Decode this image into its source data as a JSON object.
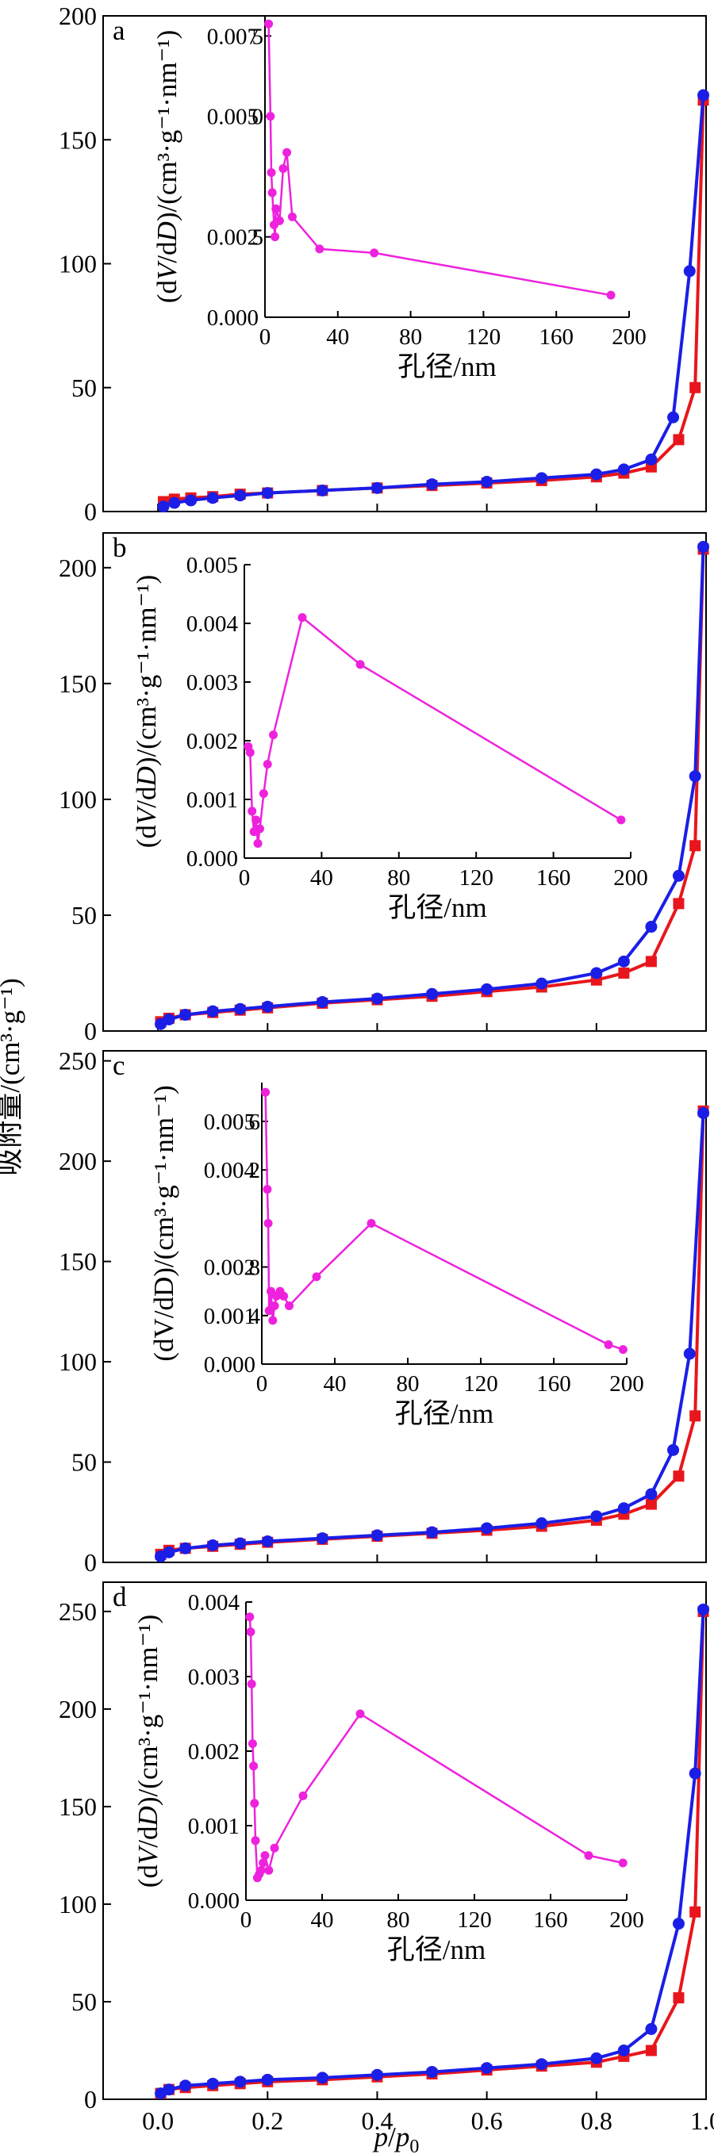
{
  "figure": {
    "ylabel": "吸附量/(cm³·g⁻¹)",
    "xlabel_main": "p",
    "xlabel_sub": "p",
    "xlabel_subscript": "0",
    "xticks": [
      "0.0",
      "0.2",
      "0.4",
      "0.6",
      "0.8",
      "1.0"
    ]
  },
  "colors": {
    "adsorption": "#e8161c",
    "desorption": "#1a1ee6",
    "inset": "#ee22dd"
  },
  "chart_data": [
    {
      "type": "line",
      "panel": "a",
      "xlim": [
        -0.1,
        1.0
      ],
      "ylim": [
        0,
        200
      ],
      "yticks": [
        "0",
        "50",
        "100",
        "150",
        "200"
      ],
      "series": [
        {
          "color": "red",
          "marker": "square",
          "x": [
            0.01,
            0.03,
            0.06,
            0.1,
            0.15,
            0.2,
            0.3,
            0.4,
            0.5,
            0.6,
            0.7,
            0.8,
            0.85,
            0.9,
            0.95,
            0.98,
            0.995
          ],
          "y": [
            4,
            5,
            5.5,
            6,
            7,
            7.5,
            8.5,
            9.5,
            10.5,
            11.5,
            12.5,
            14,
            15.5,
            18,
            29,
            50,
            166
          ]
        },
        {
          "color": "blue",
          "marker": "circle",
          "x": [
            0.01,
            0.03,
            0.06,
            0.1,
            0.15,
            0.2,
            0.3,
            0.4,
            0.5,
            0.6,
            0.7,
            0.8,
            0.85,
            0.9,
            0.94,
            0.97,
            0.995
          ],
          "y": [
            2,
            3.5,
            4.5,
            5.5,
            6.5,
            7.5,
            8.5,
            9.5,
            11,
            12,
            13.5,
            15,
            17,
            21,
            38,
            97,
            168
          ]
        }
      ],
      "inset": {
        "xlabel": "孔径/nm",
        "ylabel": "(dV/dD)/(cm³·g⁻¹·nm⁻¹)",
        "ylabel_italic": [
          "V",
          "D"
        ],
        "xlim": [
          0,
          200
        ],
        "ylim": [
          0,
          0.0075
        ],
        "xticks": [
          "0",
          "40",
          "80",
          "120",
          "160",
          "200"
        ],
        "yticks": [
          "0.000",
          "0.002",
          "0.005",
          "0.007"
        ],
        "ytick_overlays": [
          "",
          "5",
          "0",
          "5"
        ],
        "x": [
          2,
          3,
          3.5,
          4,
          5,
          5.5,
          6,
          8,
          10,
          12,
          15,
          30,
          60,
          190
        ],
        "y": [
          0.0073,
          0.005,
          0.0036,
          0.0031,
          0.0023,
          0.002,
          0.0027,
          0.0024,
          0.0037,
          0.0041,
          0.0025,
          0.0017,
          0.0016,
          0.00055
        ]
      }
    },
    {
      "type": "line",
      "panel": "b",
      "xlim": [
        -0.1,
        1.0
      ],
      "ylim": [
        0,
        215
      ],
      "yticks": [
        "0",
        "50",
        "100",
        "150",
        "200"
      ],
      "series": [
        {
          "color": "red",
          "marker": "square",
          "x": [
            0.005,
            0.02,
            0.05,
            0.1,
            0.15,
            0.2,
            0.3,
            0.4,
            0.5,
            0.6,
            0.7,
            0.8,
            0.85,
            0.9,
            0.95,
            0.98,
            0.995
          ],
          "y": [
            4,
            5.5,
            7,
            8,
            9,
            10,
            12,
            13.5,
            15,
            17,
            19,
            22,
            25,
            30,
            55,
            80,
            208
          ]
        },
        {
          "color": "blue",
          "marker": "circle",
          "x": [
            0.005,
            0.02,
            0.05,
            0.1,
            0.15,
            0.2,
            0.3,
            0.4,
            0.5,
            0.6,
            0.7,
            0.8,
            0.85,
            0.9,
            0.95,
            0.98,
            0.995
          ],
          "y": [
            3,
            5,
            7,
            8.5,
            9.5,
            10.5,
            12.5,
            14,
            16,
            18,
            20.5,
            25,
            30,
            45,
            67,
            110,
            209
          ]
        }
      ],
      "inset": {
        "xlabel": "孔径/nm",
        "ylabel": "(dV/dD)/(cm³·g⁻¹·nm⁻¹)",
        "ylabel_italic": [
          "V",
          "D"
        ],
        "xlim": [
          0,
          200
        ],
        "ylim": [
          0,
          0.005
        ],
        "xticks": [
          "0",
          "40",
          "80",
          "120",
          "160",
          "200"
        ],
        "yticks": [
          "0.000",
          "0.001",
          "0.002",
          "0.003",
          "0.004",
          "0.005"
        ],
        "ytick_overlays": [
          "",
          "",
          "",
          "",
          "",
          ""
        ],
        "x": [
          2,
          3,
          4,
          5,
          6,
          7,
          8,
          10,
          12,
          15,
          30,
          60,
          195
        ],
        "y": [
          0.0019,
          0.0018,
          0.0008,
          0.00045,
          0.00065,
          0.00025,
          0.0005,
          0.0011,
          0.0016,
          0.0021,
          0.0041,
          0.0033,
          0.00065
        ]
      }
    },
    {
      "type": "line",
      "panel": "c",
      "xlim": [
        -0.1,
        1.0
      ],
      "ylim": [
        0,
        255
      ],
      "yticks": [
        "0",
        "50",
        "100",
        "150",
        "200",
        "250"
      ],
      "series": [
        {
          "color": "red",
          "marker": "square",
          "x": [
            0.005,
            0.02,
            0.05,
            0.1,
            0.15,
            0.2,
            0.3,
            0.4,
            0.5,
            0.6,
            0.7,
            0.8,
            0.85,
            0.9,
            0.95,
            0.98,
            0.995
          ],
          "y": [
            4,
            6,
            7,
            8,
            9,
            10,
            11.5,
            13,
            14.5,
            16,
            18,
            21,
            24,
            29,
            43,
            73,
            225
          ]
        },
        {
          "color": "blue",
          "marker": "circle",
          "x": [
            0.005,
            0.02,
            0.05,
            0.1,
            0.15,
            0.2,
            0.3,
            0.4,
            0.5,
            0.6,
            0.7,
            0.8,
            0.85,
            0.9,
            0.94,
            0.97,
            0.995
          ],
          "y": [
            3,
            5,
            7,
            8.5,
            9.5,
            10.5,
            12,
            13.5,
            15,
            17,
            19.5,
            23,
            27,
            34,
            56,
            104,
            224
          ]
        }
      ],
      "inset": {
        "xlabel": "孔径/nm",
        "ylabel": "(dV/dD)/(cm³·g⁻¹·nm⁻¹)",
        "ylabel_italic": [],
        "xlim": [
          0,
          200
        ],
        "ylim": [
          0,
          0.0058
        ],
        "xticks": [
          "0",
          "40",
          "80",
          "120",
          "160",
          "200"
        ],
        "yticks": [
          "0.000",
          "0.001",
          "0.002",
          "0.004",
          "0.005"
        ],
        "ytick_overlays": [
          "",
          "4",
          "8",
          "2",
          "6"
        ],
        "x": [
          2,
          3,
          3.5,
          4,
          5,
          6,
          7,
          8,
          10,
          12,
          15,
          30,
          60,
          190,
          198
        ],
        "y": [
          0.0056,
          0.0036,
          0.0029,
          0.0011,
          0.0015,
          0.0009,
          0.0012,
          0.0014,
          0.0015,
          0.0014,
          0.0012,
          0.0018,
          0.0029,
          0.0004,
          0.0003
        ]
      }
    },
    {
      "type": "line",
      "panel": "d",
      "xlim": [
        -0.1,
        1.0
      ],
      "ylim": [
        0,
        265
      ],
      "yticks": [
        "0",
        "50",
        "100",
        "150",
        "200",
        "250"
      ],
      "series": [
        {
          "color": "red",
          "marker": "square",
          "x": [
            0.005,
            0.02,
            0.05,
            0.1,
            0.15,
            0.2,
            0.3,
            0.4,
            0.5,
            0.6,
            0.7,
            0.8,
            0.85,
            0.9,
            0.95,
            0.98,
            0.995
          ],
          "y": [
            3,
            5,
            6,
            7,
            8,
            9,
            10,
            11.5,
            13,
            15,
            17,
            19,
            22,
            25,
            52,
            96,
            250
          ]
        },
        {
          "color": "blue",
          "marker": "circle",
          "x": [
            0.005,
            0.02,
            0.05,
            0.1,
            0.15,
            0.2,
            0.3,
            0.4,
            0.5,
            0.6,
            0.7,
            0.8,
            0.85,
            0.9,
            0.95,
            0.98,
            0.995
          ],
          "y": [
            3,
            5,
            7,
            8,
            9,
            10,
            11,
            12.5,
            14,
            16,
            18,
            21,
            25,
            36,
            90,
            167,
            251
          ]
        }
      ],
      "inset": {
        "xlabel": "孔径/nm",
        "ylabel": "(dV/dD)/(cm³·g⁻¹·nm⁻¹)",
        "ylabel_italic": [
          "V",
          "D"
        ],
        "xlim": [
          0,
          200
        ],
        "ylim": [
          0,
          0.004
        ],
        "xticks": [
          "0",
          "40",
          "80",
          "120",
          "160",
          "200"
        ],
        "yticks": [
          "0.000",
          "0.001",
          "0.002",
          "0.003",
          "0.004"
        ],
        "ytick_overlays": [
          "",
          "",
          "",
          "",
          ""
        ],
        "x": [
          2,
          2.5,
          3,
          3.5,
          4,
          4.5,
          5,
          6,
          7,
          8,
          9,
          10,
          12,
          15,
          30,
          60,
          180,
          198
        ],
        "y": [
          0.0038,
          0.0036,
          0.0029,
          0.0021,
          0.0018,
          0.0013,
          0.0008,
          0.0003,
          0.00035,
          0.0004,
          0.0005,
          0.0006,
          0.0004,
          0.0007,
          0.0014,
          0.0025,
          0.0006,
          0.0005
        ]
      }
    }
  ]
}
